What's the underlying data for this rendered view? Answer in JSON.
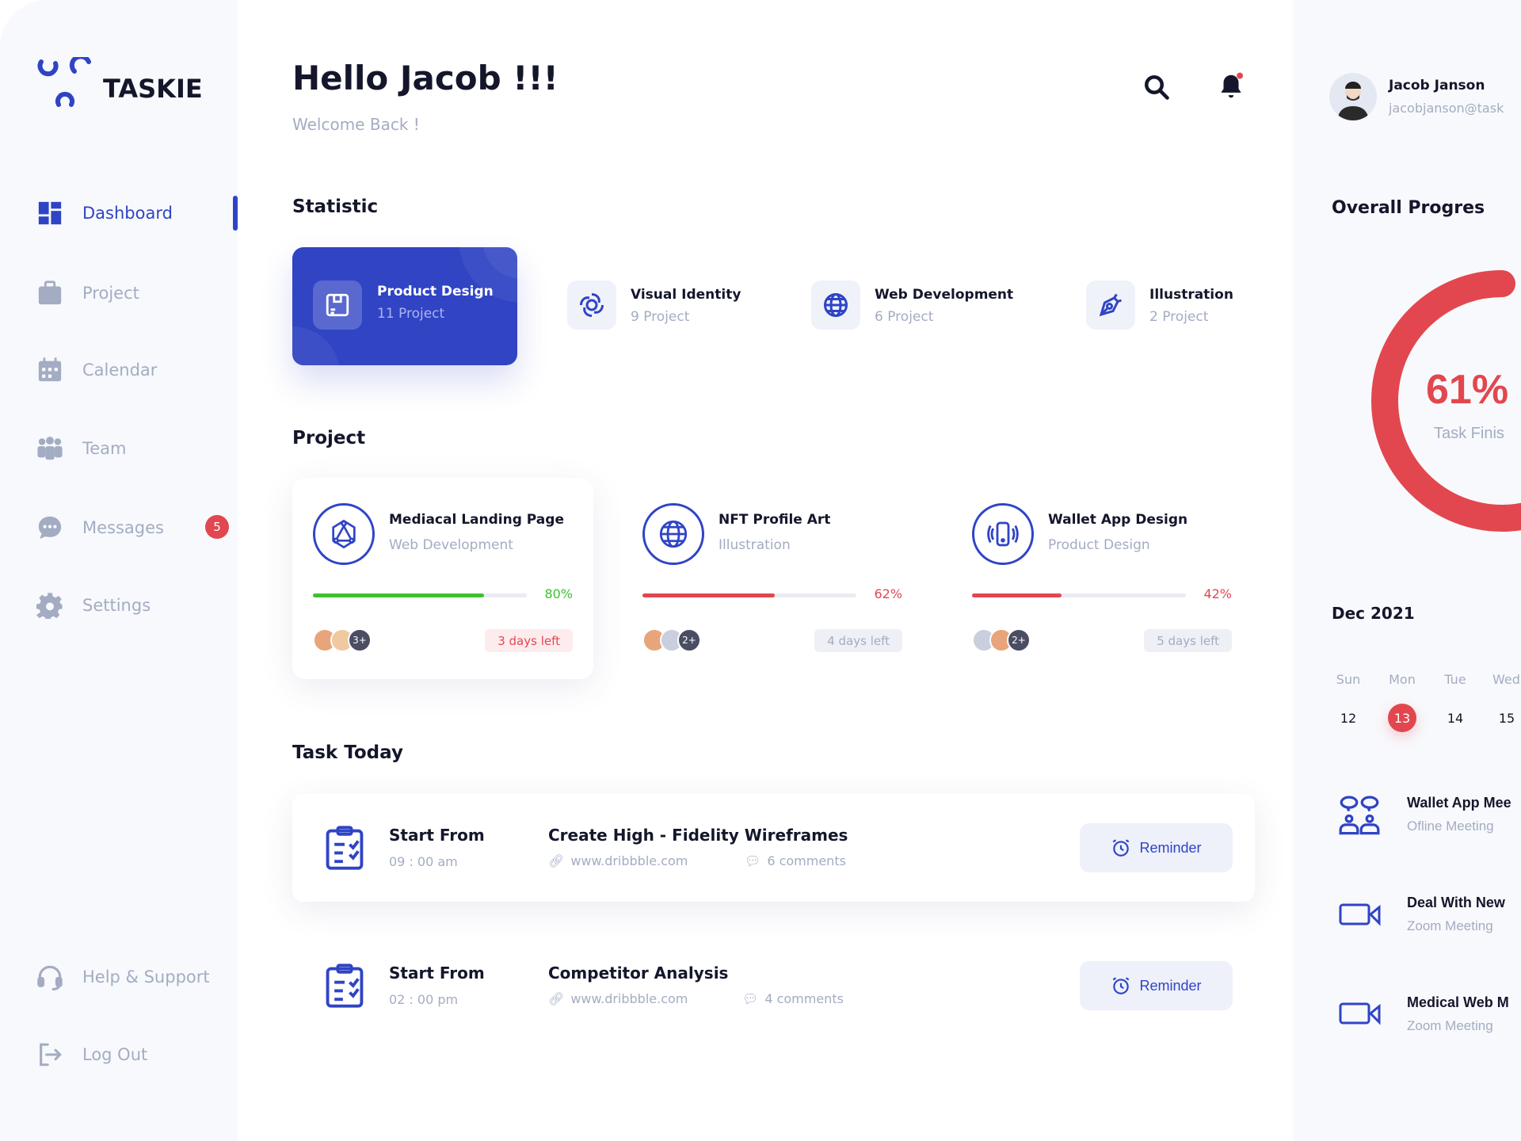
{
  "brand": {
    "name": "TASKIE",
    "accent": "#2f44c5",
    "danger": "#e2474f",
    "success": "#3ec12f"
  },
  "sidebar": {
    "items": [
      {
        "label": "Dashboard",
        "icon": "grid-icon",
        "active": true
      },
      {
        "label": "Project",
        "icon": "briefcase-icon"
      },
      {
        "label": "Calendar",
        "icon": "calendar-icon"
      },
      {
        "label": "Team",
        "icon": "team-icon"
      },
      {
        "label": "Messages",
        "icon": "chat-icon",
        "badge": "5"
      },
      {
        "label": "Settings",
        "icon": "gear-icon"
      }
    ],
    "bottom": [
      {
        "label": "Help & Support",
        "icon": "headset-icon"
      },
      {
        "label": "Log Out",
        "icon": "logout-icon"
      }
    ]
  },
  "header": {
    "title": "Hello Jacob !!!",
    "subtitle": "Welcome Back !"
  },
  "user": {
    "name": "Jacob Janson",
    "email": "jacobjanson@task"
  },
  "statistic": {
    "heading": "Statistic",
    "items": [
      {
        "title": "Product Design",
        "count": "11 Project",
        "active": true
      },
      {
        "title": "Visual Identity",
        "count": "9 Project"
      },
      {
        "title": "Web Development",
        "count": "6 Project"
      },
      {
        "title": "Illustration",
        "count": "2 Project"
      }
    ]
  },
  "projects": {
    "heading": "Project",
    "items": [
      {
        "title": "Mediacal Landing Page",
        "category": "Web Development",
        "progress": 80,
        "progress_label": "80%",
        "extra": "3+",
        "days_left": "3 days left",
        "color": "#3ec12f"
      },
      {
        "title": "NFT Profile Art",
        "category": "Illustration",
        "progress": 62,
        "progress_label": "62%",
        "extra": "2+",
        "days_left": "4 days left",
        "color": "#e2474f"
      },
      {
        "title": "Wallet App Design",
        "category": "Product Design",
        "progress": 42,
        "progress_label": "42%",
        "extra": "2+",
        "days_left": "5 days left",
        "color": "#e2474f"
      }
    ]
  },
  "tasks": {
    "heading": "Task Today",
    "items": [
      {
        "start_label": "Start From",
        "time": "09 : 00 am",
        "title": "Create High - Fidelity Wireframes",
        "link": "www.dribbble.com",
        "comments": "6 comments",
        "button": "Reminder"
      },
      {
        "start_label": "Start From",
        "time": "02 : 00 pm",
        "title": "Competitor Analysis",
        "link": "www.dribbble.com",
        "comments": "4 comments",
        "button": "Reminder"
      }
    ]
  },
  "progress": {
    "heading": "Overall Progres",
    "value": 61,
    "value_label": "61%",
    "caption": "Task Finis"
  },
  "calendar": {
    "month": "Dec 2021",
    "days": [
      {
        "dow": "Sun",
        "date": "12"
      },
      {
        "dow": "Mon",
        "date": "13",
        "selected": true
      },
      {
        "dow": "Tue",
        "date": "14"
      },
      {
        "dow": "Wed",
        "date": "15"
      }
    ]
  },
  "events": [
    {
      "title": "Wallet App Mee",
      "type": "Ofline Meeting",
      "icon": "meeting-icon"
    },
    {
      "title": "Deal With New",
      "type": "Zoom Meeting",
      "icon": "video-icon"
    },
    {
      "title": "Medical Web M",
      "type": "Zoom Meeting",
      "icon": "video-icon"
    }
  ]
}
